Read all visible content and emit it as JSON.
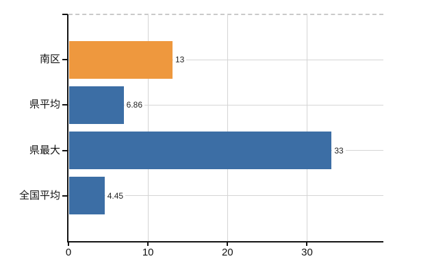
{
  "chart_data": {
    "type": "bar",
    "orientation": "horizontal",
    "title": "",
    "xlabel": "",
    "ylabel": "",
    "categories": [
      "南区",
      "県平均",
      "県最大",
      "全国平均"
    ],
    "values": [
      13,
      6.86,
      33,
      4.45
    ],
    "value_labels": [
      "13",
      "6.86",
      "33",
      "4.45"
    ],
    "bar_colors": [
      "#ee983e",
      "#3c6ea5",
      "#3c6ea5",
      "#3c6ea5"
    ],
    "x_ticks": [
      0,
      10,
      20,
      30
    ],
    "x_tick_labels": [
      "0",
      "10",
      "20",
      "30"
    ],
    "xlim": [
      0,
      39.6
    ],
    "grid": true,
    "legend": "none"
  },
  "colors": {
    "background": "#ffffff",
    "bar_orange": "#ee983e",
    "bar_blue": "#3c6ea5",
    "gridline": "#d4d4d4",
    "top_border_dashed": "#c9c9c9",
    "axis": "#111111",
    "tick_text": "#111111",
    "value_text": "#222222"
  }
}
